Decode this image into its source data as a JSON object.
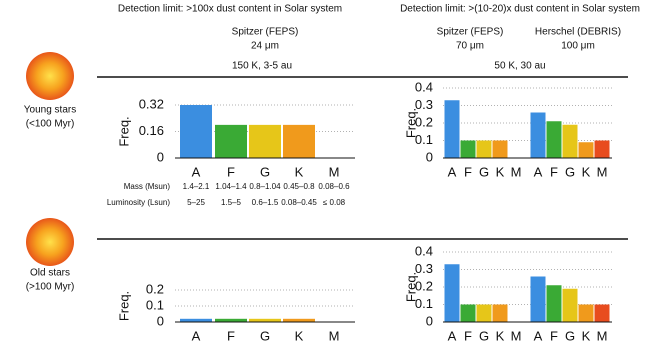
{
  "header": {
    "left": "Detection limit: >100x dust content in Solar system",
    "right": "Detection limit: >(10-20)x dust content in Solar system"
  },
  "instruments": {
    "left": {
      "name": "Spitzer (FEPS)",
      "wavelength": "24 μm",
      "temperature": "150 K, 3-5 au"
    },
    "right_a": {
      "name": "Spitzer (FEPS)",
      "wavelength": "70 μm"
    },
    "right_b": {
      "name": "Herschel (DEBRIS)",
      "wavelength": "100 μm"
    },
    "right_temperature": "50 K, 30 au"
  },
  "rows": {
    "young": [
      "Young stars",
      "(<100 Myr)"
    ],
    "old": [
      "Old stars",
      "(>100 Myr)"
    ]
  },
  "properties": {
    "mass": {
      "label": "Mass (Msun)",
      "values": [
        "1.4–2.1",
        "1.04–1.4",
        "0.8–1.04",
        "0.45–0.8",
        "0.08–0.6"
      ]
    },
    "luminosity": {
      "label": "Luminosity (Lsun)",
      "values": [
        "5–25",
        "1.5–5",
        "0.6–1.5",
        "0.08–0.45",
        "≤ 0.08"
      ]
    }
  },
  "chart_data": [
    {
      "type": "bar",
      "ylabel": "Freq.",
      "categories": [
        "A",
        "F",
        "G",
        "K",
        "M"
      ],
      "values": [
        0.32,
        0.2,
        0.2,
        0.2,
        0
      ],
      "colors": [
        "#3b8ee0",
        "#3aaa35",
        "#e6c619",
        "#f09a1c",
        "#e84c1e"
      ],
      "ylim": [
        0,
        0.32
      ],
      "yticks": [
        0,
        0.16,
        0.32
      ],
      "grid": true
    },
    {
      "type": "bar",
      "ylabel": "Freq.",
      "categories": [
        "A",
        "F",
        "G",
        "K",
        "M",
        "A",
        "F",
        "G",
        "K",
        "M"
      ],
      "values": [
        0.33,
        0.1,
        0.1,
        0.1,
        0,
        0.26,
        0.21,
        0.19,
        0.09,
        0.1
      ],
      "colors": [
        "#3b8ee0",
        "#3aaa35",
        "#e6c619",
        "#f09a1c",
        "#e84c1e",
        "#3b8ee0",
        "#3aaa35",
        "#e6c619",
        "#f09a1c",
        "#e84c1e"
      ],
      "ylim": [
        0,
        0.4
      ],
      "yticks": [
        0,
        0.1,
        0.2,
        0.3,
        0.4
      ],
      "grid": true
    },
    {
      "type": "bar",
      "ylabel": "Freq.",
      "categories": [
        "A",
        "F",
        "G",
        "K",
        "M"
      ],
      "values": [
        0.02,
        0.02,
        0.02,
        0.02,
        0
      ],
      "colors": [
        "#3b8ee0",
        "#3aaa35",
        "#e6c619",
        "#f09a1c",
        "#e84c1e"
      ],
      "ylim": [
        0,
        0.2
      ],
      "yticks": [
        0,
        0.1,
        0.2
      ],
      "grid": true
    },
    {
      "type": "bar",
      "ylabel": "Freq.",
      "categories": [
        "A",
        "F",
        "G",
        "K",
        "M",
        "A",
        "F",
        "G",
        "K",
        "M"
      ],
      "values": [
        0.33,
        0.1,
        0.1,
        0.1,
        0,
        0.26,
        0.21,
        0.19,
        0.1,
        0.1
      ],
      "colors": [
        "#3b8ee0",
        "#3aaa35",
        "#e6c619",
        "#f09a1c",
        "#e84c1e",
        "#3b8ee0",
        "#3aaa35",
        "#e6c619",
        "#f09a1c",
        "#e84c1e"
      ],
      "ylim": [
        0,
        0.4
      ],
      "yticks": [
        0,
        0.1,
        0.2,
        0.3,
        0.4
      ],
      "grid": true
    }
  ]
}
